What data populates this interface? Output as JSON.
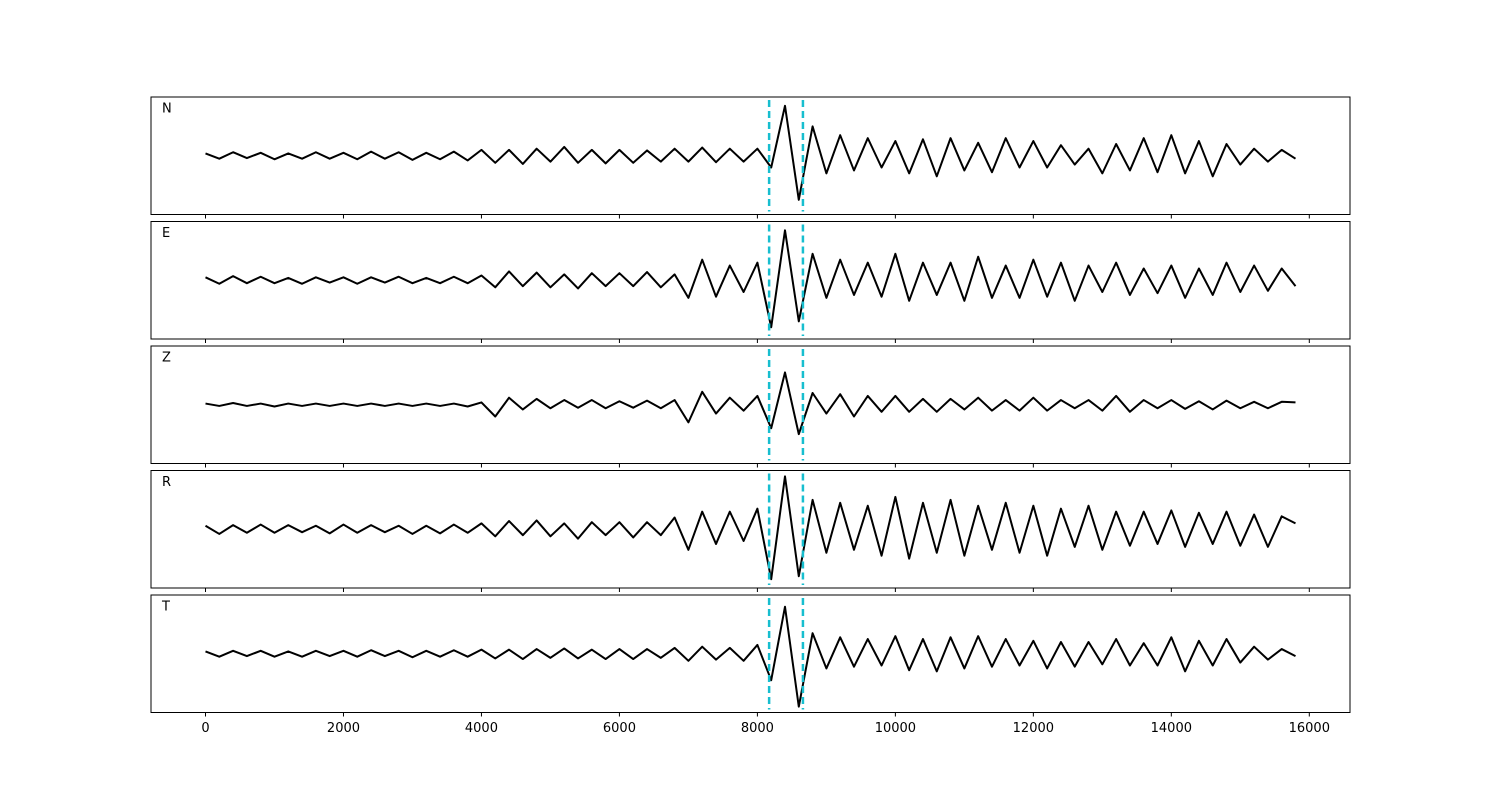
{
  "chart_data": {
    "type": "line",
    "layout": "stacked",
    "x": [
      0,
      200,
      400,
      600,
      800,
      1000,
      1200,
      1400,
      1600,
      1800,
      2000,
      2200,
      2400,
      2600,
      2800,
      3000,
      3200,
      3400,
      3600,
      3800,
      4000,
      4200,
      4400,
      4600,
      4800,
      5000,
      5200,
      5400,
      5600,
      5800,
      6000,
      6200,
      6400,
      6600,
      6800,
      7000,
      7200,
      7400,
      7600,
      7800,
      8000,
      8200,
      8400,
      8600,
      8800,
      9000,
      9200,
      9400,
      9600,
      9800,
      10000,
      10200,
      10400,
      10600,
      10800,
      11000,
      11200,
      11400,
      11600,
      11800,
      12000,
      12200,
      12400,
      12600,
      12800,
      13000,
      13200,
      13400,
      13600,
      13800,
      14000,
      14200,
      14400,
      14600,
      14800,
      15000,
      15200,
      15400,
      15600,
      15800
    ],
    "xlim": [
      -790,
      16590
    ],
    "xticks": [
      0,
      2000,
      4000,
      6000,
      8000,
      10000,
      12000,
      14000,
      16000
    ],
    "ylim": [
      -1,
      1
    ],
    "vlines": [
      8170,
      8660
    ],
    "vline_color": "#17becf",
    "series": [
      {
        "name": "N",
        "color": "#000000",
        "values": [
          0.04,
          -0.05,
          0.06,
          -0.04,
          0.05,
          -0.06,
          0.04,
          -0.05,
          0.06,
          -0.05,
          0.05,
          -0.06,
          0.07,
          -0.05,
          0.06,
          -0.07,
          0.05,
          -0.06,
          0.07,
          -0.08,
          0.1,
          -0.12,
          0.1,
          -0.14,
          0.12,
          -0.1,
          0.15,
          -0.12,
          0.1,
          -0.13,
          0.1,
          -0.12,
          0.09,
          -0.1,
          0.12,
          -0.1,
          0.14,
          -0.11,
          0.12,
          -0.1,
          0.12,
          -0.2,
          0.85,
          -0.75,
          0.5,
          -0.3,
          0.35,
          -0.25,
          0.3,
          -0.2,
          0.25,
          -0.3,
          0.28,
          -0.35,
          0.3,
          -0.25,
          0.22,
          -0.28,
          0.3,
          -0.2,
          0.25,
          -0.2,
          0.18,
          -0.15,
          0.12,
          -0.3,
          0.2,
          -0.25,
          0.3,
          -0.28,
          0.35,
          -0.3,
          0.25,
          -0.35,
          0.2,
          -0.15,
          0.12,
          -0.1,
          0.1,
          -0.05
        ]
      },
      {
        "name": "E",
        "color": "#000000",
        "values": [
          0.05,
          -0.06,
          0.07,
          -0.05,
          0.06,
          -0.05,
          0.04,
          -0.06,
          0.05,
          -0.04,
          0.05,
          -0.06,
          0.05,
          -0.04,
          0.06,
          -0.05,
          0.04,
          -0.05,
          0.06,
          -0.05,
          0.08,
          -0.12,
          0.15,
          -0.1,
          0.13,
          -0.12,
          0.1,
          -0.14,
          0.12,
          -0.1,
          0.12,
          -0.1,
          0.14,
          -0.12,
          0.1,
          -0.3,
          0.35,
          -0.28,
          0.25,
          -0.2,
          0.3,
          -0.8,
          0.85,
          -0.7,
          0.45,
          -0.3,
          0.35,
          -0.25,
          0.3,
          -0.28,
          0.45,
          -0.35,
          0.3,
          -0.25,
          0.3,
          -0.35,
          0.4,
          -0.3,
          0.25,
          -0.3,
          0.35,
          -0.28,
          0.3,
          -0.35,
          0.25,
          -0.2,
          0.3,
          -0.25,
          0.2,
          -0.22,
          0.25,
          -0.3,
          0.2,
          -0.25,
          0.3,
          -0.2,
          0.25,
          -0.18,
          0.2,
          -0.1
        ]
      },
      {
        "name": "Z",
        "color": "#000000",
        "values": [
          0.02,
          -0.02,
          0.03,
          -0.02,
          0.02,
          -0.03,
          0.02,
          -0.02,
          0.02,
          -0.02,
          0.02,
          -0.02,
          0.02,
          -0.02,
          0.02,
          -0.02,
          0.02,
          -0.02,
          0.02,
          -0.03,
          0.04,
          -0.2,
          0.12,
          -0.08,
          0.1,
          -0.06,
          0.08,
          -0.05,
          0.08,
          -0.06,
          0.06,
          -0.05,
          0.07,
          -0.06,
          0.08,
          -0.3,
          0.22,
          -0.15,
          0.12,
          -0.1,
          0.15,
          -0.4,
          0.55,
          -0.5,
          0.2,
          -0.15,
          0.18,
          -0.2,
          0.15,
          -0.12,
          0.15,
          -0.12,
          0.1,
          -0.12,
          0.1,
          -0.08,
          0.12,
          -0.1,
          0.08,
          -0.1,
          0.12,
          -0.1,
          0.08,
          -0.06,
          0.08,
          -0.1,
          0.15,
          -0.12,
          0.08,
          -0.06,
          0.08,
          -0.07,
          0.06,
          -0.08,
          0.07,
          -0.06,
          0.05,
          -0.06,
          0.05,
          0.04
        ]
      },
      {
        "name": "R",
        "color": "#000000",
        "values": [
          0.06,
          -0.08,
          0.07,
          -0.06,
          0.08,
          -0.06,
          0.07,
          -0.05,
          0.06,
          -0.07,
          0.08,
          -0.06,
          0.07,
          -0.05,
          0.06,
          -0.08,
          0.06,
          -0.07,
          0.08,
          -0.06,
          0.1,
          -0.12,
          0.14,
          -0.1,
          0.15,
          -0.12,
          0.1,
          -0.16,
          0.12,
          -0.1,
          0.12,
          -0.14,
          0.12,
          -0.1,
          0.2,
          -0.35,
          0.3,
          -0.25,
          0.3,
          -0.2,
          0.35,
          -0.85,
          0.9,
          -0.8,
          0.5,
          -0.4,
          0.45,
          -0.35,
          0.4,
          -0.45,
          0.55,
          -0.5,
          0.45,
          -0.4,
          0.5,
          -0.45,
          0.4,
          -0.35,
          0.45,
          -0.4,
          0.4,
          -0.45,
          0.35,
          -0.3,
          0.4,
          -0.35,
          0.3,
          -0.28,
          0.3,
          -0.25,
          0.32,
          -0.3,
          0.28,
          -0.25,
          0.3,
          -0.28,
          0.25,
          -0.3,
          0.22,
          0.1
        ]
      },
      {
        "name": "T",
        "color": "#000000",
        "values": [
          0.04,
          -0.05,
          0.05,
          -0.04,
          0.05,
          -0.05,
          0.04,
          -0.05,
          0.05,
          -0.04,
          0.05,
          -0.05,
          0.06,
          -0.04,
          0.05,
          -0.06,
          0.05,
          -0.05,
          0.06,
          -0.05,
          0.07,
          -0.08,
          0.07,
          -0.09,
          0.08,
          -0.07,
          0.09,
          -0.08,
          0.07,
          -0.09,
          0.08,
          -0.09,
          0.08,
          -0.07,
          0.1,
          -0.12,
          0.12,
          -0.1,
          0.1,
          -0.12,
          0.15,
          -0.45,
          0.8,
          -0.9,
          0.35,
          -0.25,
          0.28,
          -0.22,
          0.25,
          -0.2,
          0.3,
          -0.28,
          0.25,
          -0.3,
          0.28,
          -0.25,
          0.3,
          -0.22,
          0.25,
          -0.2,
          0.22,
          -0.25,
          0.2,
          -0.22,
          0.2,
          -0.18,
          0.25,
          -0.2,
          0.18,
          -0.2,
          0.28,
          -0.3,
          0.22,
          -0.2,
          0.25,
          -0.15,
          0.12,
          -0.1,
          0.08,
          -0.04
        ]
      }
    ]
  }
}
